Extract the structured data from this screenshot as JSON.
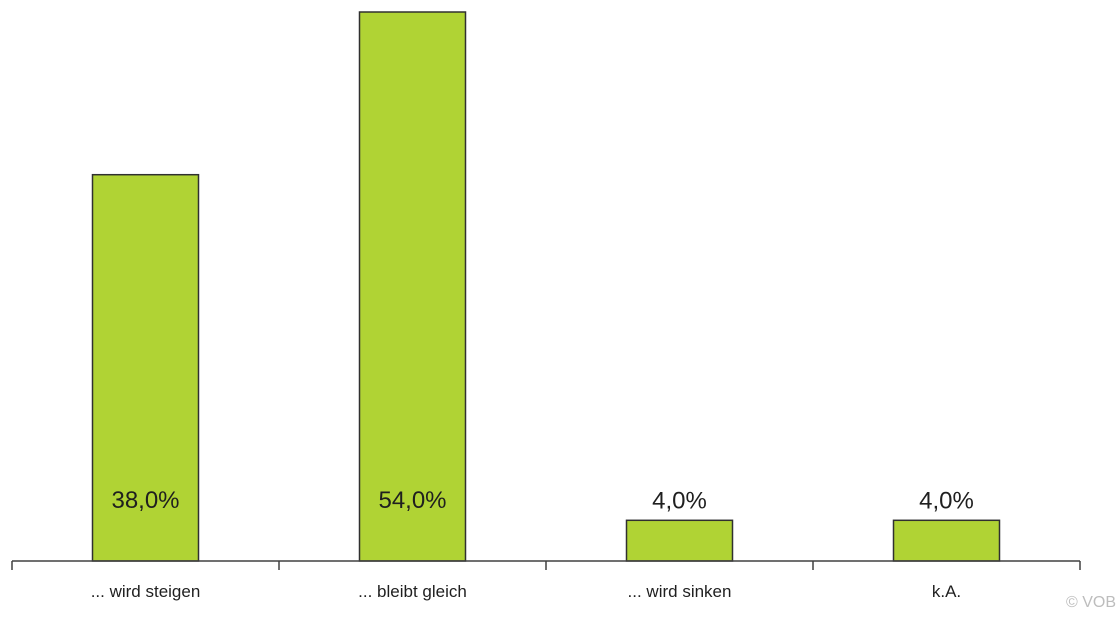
{
  "chart_data": {
    "type": "bar",
    "categories": [
      "... wird steigen",
      "... bleibt gleich",
      "... wird sinken",
      "k.A."
    ],
    "values": [
      38.0,
      54.0,
      4.0,
      4.0
    ],
    "data_labels": [
      "38,0%",
      "54,0%",
      "4,0%",
      "4,0%"
    ],
    "title": "",
    "xlabel": "",
    "ylabel": "",
    "ylim": [
      0,
      54
    ],
    "grid": false,
    "legend": "none",
    "bar_color": "#b0d334",
    "bar_outline_color": "#303030"
  },
  "watermark": {
    "text": "© VOB"
  }
}
